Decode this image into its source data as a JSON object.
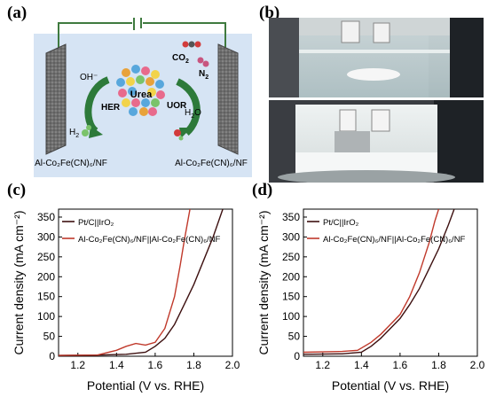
{
  "panels": {
    "a": "(a)",
    "b": "(b)",
    "c": "(c)",
    "d": "(d)"
  },
  "schematic": {
    "species": {
      "oh": "OH⁻",
      "h2_base": "H",
      "h2_sub": "2",
      "co2_base": "CO",
      "co2_sub": "2",
      "n2_base": "N",
      "n2_sub": "2",
      "h2o_base": "H",
      "h2o_sub": "2",
      "h2o_tail": "O"
    },
    "reactions": {
      "her": "HER",
      "uor": "UOR",
      "urea": "Urea"
    },
    "electrode_left": "Al-Co₂Fe(CN)₆/NF",
    "electrode_right": "Al-Co₂Fe(CN)₆/NF",
    "colors": {
      "background": "#d6e4f4",
      "wire": "#3f7a3f",
      "arrow": "#2d7a3a",
      "electrode": "#6b6b6b"
    }
  },
  "chart_data": [
    {
      "type": "line",
      "panel": "(c)",
      "xlabel": "Potential (V vs. RHE)",
      "ylabel": "Current density (mA cm⁻²)",
      "xlim": [
        1.1,
        2.0
      ],
      "ylim": [
        0,
        370
      ],
      "xticks": [
        1.2,
        1.4,
        1.6,
        1.8,
        2.0
      ],
      "yticks": [
        0,
        50,
        100,
        150,
        200,
        250,
        300,
        350
      ],
      "legend_position": "top-left",
      "series": [
        {
          "name": "Pt/C||IrO₂",
          "color": "#3d1010",
          "x": [
            1.1,
            1.3,
            1.45,
            1.55,
            1.6,
            1.65,
            1.7,
            1.75,
            1.8,
            1.85,
            1.9,
            1.95
          ],
          "y": [
            2,
            3,
            5,
            10,
            25,
            45,
            80,
            130,
            180,
            240,
            300,
            370
          ]
        },
        {
          "name": "Al-Co₂Fe(CN)₆/NF||Al-Co₂Fe(CN)₆/NF",
          "color": "#c0392b",
          "x": [
            1.1,
            1.3,
            1.4,
            1.45,
            1.5,
            1.55,
            1.6,
            1.65,
            1.7,
            1.73,
            1.75,
            1.78
          ],
          "y": [
            2,
            3,
            15,
            25,
            32,
            28,
            35,
            70,
            150,
            230,
            290,
            370
          ]
        }
      ]
    },
    {
      "type": "line",
      "panel": "(d)",
      "xlabel": "Potential (V vs. RHE)",
      "ylabel": "Current density (mA cm⁻²)",
      "xlim": [
        1.1,
        2.0
      ],
      "ylim": [
        0,
        370
      ],
      "xticks": [
        1.2,
        1.4,
        1.6,
        1.8,
        2.0
      ],
      "yticks": [
        0,
        50,
        100,
        150,
        200,
        250,
        300,
        350
      ],
      "legend_position": "top-left",
      "series": [
        {
          "name": "Pt/C||IrO₂",
          "color": "#3d1010",
          "x": [
            1.1,
            1.3,
            1.4,
            1.45,
            1.5,
            1.55,
            1.6,
            1.65,
            1.7,
            1.75,
            1.8,
            1.85,
            1.88
          ],
          "y": [
            5,
            6,
            10,
            25,
            45,
            70,
            95,
            130,
            170,
            220,
            270,
            330,
            370
          ]
        },
        {
          "name": "Al-Co₂Fe(CN)₆/NF||Al-Co₂Fe(CN)₆/NF",
          "color": "#c0392b",
          "x": [
            1.1,
            1.3,
            1.38,
            1.45,
            1.5,
            1.55,
            1.6,
            1.65,
            1.7,
            1.75,
            1.78,
            1.8
          ],
          "y": [
            10,
            12,
            15,
            35,
            55,
            80,
            105,
            150,
            210,
            285,
            340,
            370
          ]
        }
      ]
    }
  ]
}
